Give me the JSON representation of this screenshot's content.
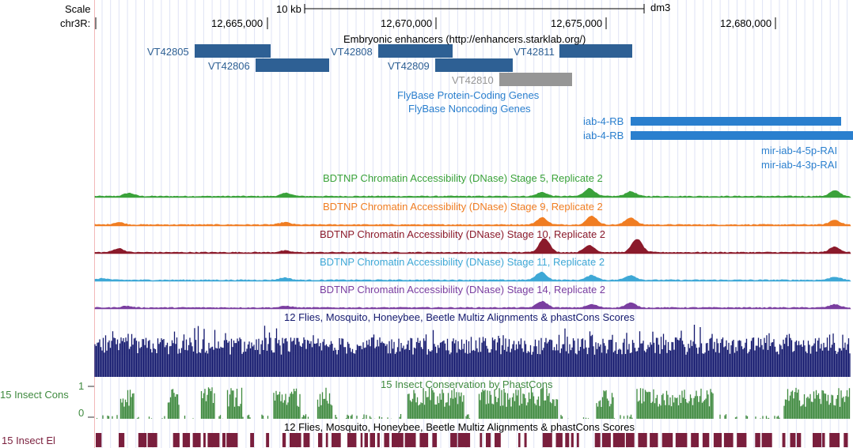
{
  "ruler": {
    "scale_label": "Scale",
    "chrom_label": "chr3R:",
    "scale_bar_text": "10 kb",
    "assembly": "dm3",
    "positions": [
      "12,665,000",
      "12,670,000",
      "12,675,000",
      "12,680,000"
    ]
  },
  "enhancers": {
    "title": "Embryonic enhancers (http://enhancers.starklab.org/)",
    "items": [
      {
        "name": "VT42805",
        "color": "#2e6094"
      },
      {
        "name": "VT42806",
        "color": "#2e6094"
      },
      {
        "name": "VT42808",
        "color": "#2e6094"
      },
      {
        "name": "VT42809",
        "color": "#2e6094"
      },
      {
        "name": "VT42810",
        "color": "#969696"
      },
      {
        "name": "VT42811",
        "color": "#2e6094"
      }
    ]
  },
  "genes": {
    "protein_coding_title": "FlyBase Protein-Coding Genes",
    "noncoding_title": "FlyBase Noncoding Genes",
    "transcripts": [
      "iab-4-RB",
      "iab-4-RB"
    ],
    "mirnas": [
      "mir-iab-4-5p-RAI",
      "mir-iab-4-3p-RAI"
    ],
    "color": "#2a7fce"
  },
  "dnase_tracks": [
    {
      "title": "BDTNP Chromatin Accessibility (DNase) Stage 5, Replicate 2",
      "color": "#3aa23a"
    },
    {
      "title": "BDTNP Chromatin Accessibility (DNase) Stage 9, Replicate 2",
      "color": "#f07d22"
    },
    {
      "title": "BDTNP Chromatin Accessibility (DNase) Stage 10, Replicate 2",
      "color": "#8b1a2b"
    },
    {
      "title": "BDTNP Chromatin Accessibility (DNase) Stage 11, Replicate 2",
      "color": "#3ea8d6"
    },
    {
      "title": "BDTNP Chromatin Accessibility (DNase) Stage 14, Replicate 2",
      "color": "#7a3ea0"
    }
  ],
  "conservation": {
    "multiz_title": "12 Flies, Mosquito, Honeybee, Beetle Multiz Alignments & phastCons Scores",
    "multiz_color": "#14196e",
    "phastcons_title": "15 Insect Conservation by PhastCons",
    "phastcons_label": "15 Insect Cons",
    "phastcons_max": "1",
    "phastcons_min": "0",
    "phastcons_color": "#3f8a3f",
    "elements_title": "12 Flies, Mosquito, Honeybee, Beetle Multiz Alignments & phastCons Scores",
    "elements_label": "15 Insect El",
    "elements_color": "#7a1f3d"
  }
}
